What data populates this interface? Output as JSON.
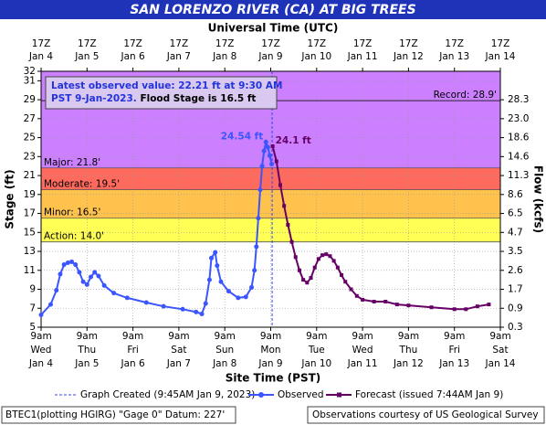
{
  "chart_data": {
    "type": "line",
    "title": "SAN LORENZO RIVER (CA) AT BIG TREES",
    "x_label_top": "Universal Time (UTC)",
    "x_label": "Site Time (PST)",
    "y_label": "Stage (ft)",
    "y2_label": "Flow (kcfs)",
    "xlim": [
      "Jan 4 09:00",
      "Jan 14 09:00"
    ],
    "ylim": [
      5,
      32
    ],
    "yticks": [
      5,
      7,
      9,
      11,
      13,
      15,
      17,
      19,
      21,
      23,
      25,
      27,
      29,
      31,
      32
    ],
    "y2ticks": [
      0.3,
      0.9,
      1.7,
      2.6,
      3.5,
      4.7,
      6.5,
      8.6,
      11.3,
      14.6,
      18.6,
      {
        "value": 23,
        "label": "23.0"
      },
      28.3
    ],
    "xticks": [
      {
        "value": "Jan 4 09:00",
        "label": [
          "9am",
          "Wed",
          "Jan 4"
        ]
      },
      {
        "value": "Jan 5 09:00",
        "label": [
          "9am",
          "Thu",
          "Jan 5"
        ]
      },
      {
        "value": "Jan 6 09:00",
        "label": [
          "9am",
          "Fri",
          "Jan 6"
        ]
      },
      {
        "value": "Jan 7 09:00",
        "label": [
          "9am",
          "Sat",
          "Jan 7"
        ]
      },
      {
        "value": "Jan 8 09:00",
        "label": [
          "9am",
          "Sun",
          "Jan 8"
        ]
      },
      {
        "value": "Jan 9 09:00",
        "label": [
          "9am",
          "Mon",
          "Jan 9"
        ]
      },
      {
        "value": "Jan 10 09:00",
        "label": [
          "9am",
          "Tue",
          "Jan 10"
        ]
      },
      {
        "value": "Jan 11 09:00",
        "label": [
          "9am",
          "Wed",
          "Jan 11"
        ]
      },
      {
        "value": "Jan 12 09:00",
        "label": [
          "9am",
          "Thu",
          "Jan 12"
        ]
      },
      {
        "value": "Jan 13 09:00",
        "label": [
          "9am",
          "Fri",
          "Jan 13"
        ]
      },
      {
        "value": "Jan 14 09:00",
        "label": [
          "9am",
          "Sat",
          "Jan 14"
        ]
      }
    ],
    "xticks_top": [
      {
        "value": "Jan 4 09:00",
        "label": [
          "17Z",
          "Jan 4"
        ]
      },
      {
        "value": "Jan 5 09:00",
        "label": [
          "17Z",
          "Jan 5"
        ]
      },
      {
        "value": "Jan 6 09:00",
        "label": [
          "17Z",
          "Jan 6"
        ]
      },
      {
        "value": "Jan 7 09:00",
        "label": [
          "17Z",
          "Jan 7"
        ]
      },
      {
        "value": "Jan 8 09:00",
        "label": [
          "17Z",
          "Jan 8"
        ]
      },
      {
        "value": "Jan 9 09:00",
        "label": [
          "17Z",
          "Jan 9"
        ]
      },
      {
        "value": "Jan 10 09:00",
        "label": [
          "17Z",
          "Jan 10"
        ]
      },
      {
        "value": "Jan 11 09:00",
        "label": [
          "17Z",
          "Jan 11"
        ]
      },
      {
        "value": "Jan 12 09:00",
        "label": [
          "17Z",
          "Jan 12"
        ]
      },
      {
        "value": "Jan 13 09:00",
        "label": [
          "17Z",
          "Jan 13"
        ]
      },
      {
        "value": "Jan 14 09:00",
        "label": [
          "17Z",
          "Jan 14"
        ]
      }
    ],
    "grid": true,
    "thresholds": [
      {
        "value": 14.0,
        "label": "Action: 14.0'",
        "color": "#ffff55"
      },
      {
        "value": 16.5,
        "label": "Minor: 16.5'",
        "color": "#ffc34d"
      },
      {
        "value": 19.5,
        "label": "Moderate: 19.5'",
        "color": "#ff6a5e"
      },
      {
        "value": 21.8,
        "label": "Major: 21.8'",
        "color": "#cc80ff"
      }
    ],
    "record": {
      "value": 28.9,
      "label": "Record: 28.9'"
    },
    "annotation": {
      "text": [
        "Latest observed value: 22.21 ft at 9:30 AM",
        "PST 9-Jan-2023.",
        "Flood Stage is 16.5 ft"
      ]
    },
    "created": {
      "name": "Graph Created (9:45AM Jan 9, 2023)",
      "x": "Jan 9 09:45",
      "color": "#3344ff"
    },
    "series": [
      {
        "name": "Observed",
        "color": "#3b55ff",
        "marker": "circle",
        "peak_label": "24.54 ft",
        "x": [
          "Jan 4 09:00",
          "Jan 4 14:00",
          "Jan 4 17:00",
          "Jan 4 19:00",
          "Jan 4 21:00",
          "Jan 4 23:00",
          "Jan 5 01:00",
          "Jan 5 03:00",
          "Jan 5 05:00",
          "Jan 5 07:00",
          "Jan 5 09:00",
          "Jan 5 11:00",
          "Jan 5 13:00",
          "Jan 5 15:00",
          "Jan 5 18:00",
          "Jan 5 23:00",
          "Jan 6 06:00",
          "Jan 6 16:00",
          "Jan 7 01:00",
          "Jan 7 11:00",
          "Jan 7 18:00",
          "Jan 7 21:00",
          "Jan 7 23:00",
          "Jan 8 01:00",
          "Jan 8 02:00",
          "Jan 8 04:00",
          "Jan 8 05:00",
          "Jan 8 07:00",
          "Jan 8 11:00",
          "Jan 8 16:00",
          "Jan 8 20:00",
          "Jan 8 23:00",
          "Jan 9 00:30",
          "Jan 9 01:30",
          "Jan 9 02:30",
          "Jan 9 03:30",
          "Jan 9 04:30",
          "Jan 9 05:30",
          "Jan 9 06:30",
          "Jan 9 07:30",
          "Jan 9 08:30",
          "Jan 9 09:30"
        ],
        "values": [
          6.3,
          7.4,
          8.9,
          10.6,
          11.6,
          11.8,
          11.9,
          11.6,
          10.8,
          9.8,
          9.5,
          10.3,
          10.8,
          10.4,
          9.4,
          8.6,
          8.1,
          7.6,
          7.2,
          6.9,
          6.6,
          6.4,
          7.5,
          10.0,
          12.3,
          12.9,
          11.5,
          9.8,
          8.8,
          8.1,
          8.2,
          9.2,
          11.0,
          13.5,
          16.5,
          19.5,
          22.0,
          23.6,
          24.54,
          24.0,
          23.1,
          22.21
        ]
      },
      {
        "name": "Forecast (issued 7:44AM Jan 9)",
        "color": "#660066",
        "marker": "square",
        "peak_label": "24.1 ft",
        "x": [
          "Jan 9 10:00",
          "Jan 9 12:00",
          "Jan 9 14:00",
          "Jan 9 16:00",
          "Jan 9 18:00",
          "Jan 9 20:00",
          "Jan 9 22:00",
          "Jan 10 00:00",
          "Jan 10 02:00",
          "Jan 10 04:00",
          "Jan 10 06:00",
          "Jan 10 08:00",
          "Jan 10 10:00",
          "Jan 10 12:00",
          "Jan 10 14:00",
          "Jan 10 16:00",
          "Jan 10 18:00",
          "Jan 10 20:00",
          "Jan 10 22:00",
          "Jan 11 00:00",
          "Jan 11 03:00",
          "Jan 11 06:00",
          "Jan 11 09:00",
          "Jan 11 15:00",
          "Jan 11 21:00",
          "Jan 12 03:00",
          "Jan 12 09:00",
          "Jan 12 21:00",
          "Jan 13 09:00",
          "Jan 13 15:00",
          "Jan 13 21:00",
          "Jan 14 03:00"
        ],
        "values": [
          24.1,
          22.5,
          20.0,
          17.8,
          15.8,
          14.0,
          12.4,
          11.0,
          10.0,
          9.7,
          10.2,
          11.3,
          12.2,
          12.6,
          12.7,
          12.5,
          12.0,
          11.3,
          10.5,
          9.8,
          9.0,
          8.3,
          7.9,
          7.7,
          7.7,
          7.4,
          7.3,
          7.1,
          6.9,
          6.9,
          7.2,
          7.4
        ]
      }
    ]
  },
  "footer": {
    "left": "BTEC1(plotting HGIRG) \"Gage 0\" Datum: 227'",
    "right": "Observations courtesy of US Geological Survey"
  }
}
